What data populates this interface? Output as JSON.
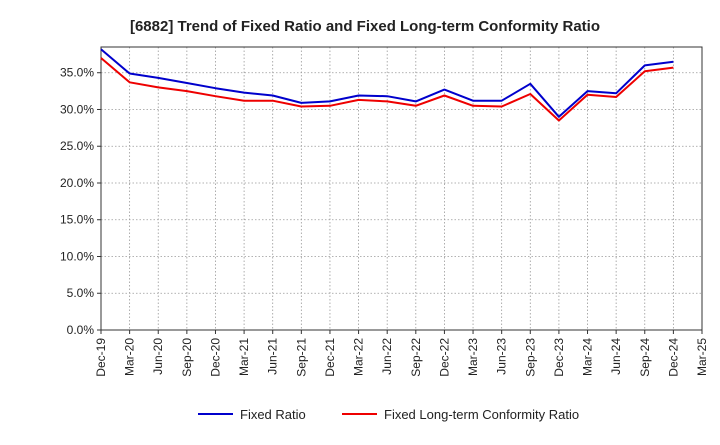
{
  "chart_data": {
    "type": "line",
    "title": "[6882]  Trend of Fixed Ratio and Fixed Long-term Conformity Ratio",
    "xlabel": "",
    "ylabel": "",
    "x": [
      "Dec-19",
      "Mar-20",
      "Jun-20",
      "Sep-20",
      "Dec-20",
      "Mar-21",
      "Jun-21",
      "Sep-21",
      "Dec-21",
      "Mar-22",
      "Jun-22",
      "Sep-22",
      "Dec-22",
      "Mar-23",
      "Jun-23",
      "Sep-23",
      "Dec-23",
      "Mar-24",
      "Jun-24",
      "Sep-24",
      "Dec-24",
      "Mar-25"
    ],
    "ylim": [
      0,
      38.5
    ],
    "yticks": [
      0,
      5,
      10,
      15,
      20,
      25,
      30,
      35
    ],
    "ytick_labels": [
      "0.0%",
      "5.0%",
      "10.0%",
      "15.0%",
      "20.0%",
      "25.0%",
      "30.0%",
      "35.0%"
    ],
    "grid": true,
    "legend_position": "bottom",
    "series": [
      {
        "name": "Fixed Ratio",
        "color": "#0000cc",
        "values": [
          38.2,
          34.9,
          34.3,
          33.6,
          32.9,
          32.3,
          31.9,
          30.9,
          31.1,
          31.9,
          31.8,
          31.1,
          32.7,
          31.2,
          31.2,
          33.5,
          29.0,
          32.5,
          32.2,
          36.0,
          36.5,
          null
        ]
      },
      {
        "name": "Fixed Long-term Conformity Ratio",
        "color": "#ee0000",
        "values": [
          37.0,
          33.7,
          33.0,
          32.5,
          31.8,
          31.2,
          31.2,
          30.4,
          30.5,
          31.3,
          31.1,
          30.5,
          31.9,
          30.5,
          30.4,
          32.1,
          28.5,
          32.0,
          31.7,
          35.2,
          35.7,
          null
        ]
      }
    ]
  }
}
